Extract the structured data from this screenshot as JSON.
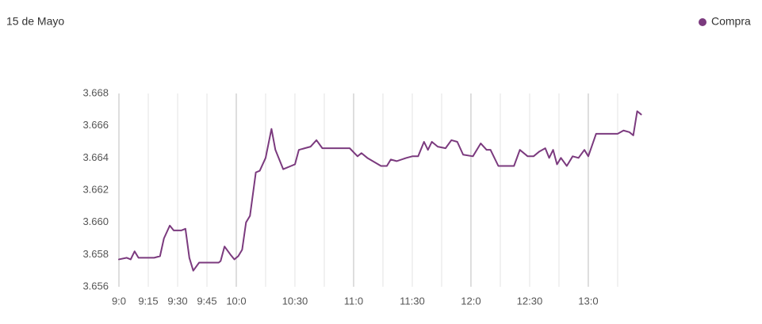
{
  "chart_data": {
    "type": "line",
    "title": "15 de Mayo",
    "x": [
      0,
      4,
      6,
      8,
      10,
      18,
      21,
      23,
      26,
      28,
      32,
      34,
      36,
      38,
      41,
      51,
      52,
      54,
      57,
      59,
      61,
      63,
      65,
      67,
      70,
      72,
      75,
      78,
      80,
      84,
      88,
      90,
      92,
      95,
      98,
      101,
      104,
      118,
      122,
      124,
      127,
      134,
      137,
      139,
      142,
      147,
      150,
      153,
      156,
      158,
      160,
      163,
      167,
      170,
      173,
      176,
      181,
      185,
      188,
      190,
      194,
      202,
      205,
      209,
      212,
      215,
      218,
      220,
      222,
      224,
      226,
      229,
      232,
      235,
      238,
      240,
      244,
      247,
      255,
      258,
      261,
      263,
      265,
      267
    ],
    "series": [
      {
        "name": "Compra",
        "color": "#7b3a7e",
        "values": [
          3.6577,
          3.6578,
          3.6577,
          3.6582,
          3.6578,
          3.6578,
          3.6579,
          3.659,
          3.6598,
          3.6595,
          3.6595,
          3.6596,
          3.6578,
          3.657,
          3.6575,
          3.6575,
          3.6576,
          3.6585,
          3.658,
          3.6577,
          3.6579,
          3.6583,
          3.66,
          3.6604,
          3.6631,
          3.6632,
          3.664,
          3.6658,
          3.6645,
          3.6633,
          3.6635,
          3.6636,
          3.6645,
          3.6646,
          3.6647,
          3.6651,
          3.6646,
          3.6646,
          3.6641,
          3.6643,
          3.664,
          3.6635,
          3.6635,
          3.6639,
          3.6638,
          3.664,
          3.6641,
          3.6641,
          3.665,
          3.6645,
          3.665,
          3.6647,
          3.6646,
          3.6651,
          3.665,
          3.6642,
          3.6641,
          3.6649,
          3.6645,
          3.6645,
          3.6635,
          3.6635,
          3.6645,
          3.6641,
          3.6641,
          3.6644,
          3.6646,
          3.664,
          3.6645,
          3.6636,
          3.664,
          3.6635,
          3.6641,
          3.664,
          3.6645,
          3.6641,
          3.6655,
          3.6655,
          3.6655,
          3.6657,
          3.6656,
          3.6654,
          3.6669,
          3.6667
        ]
      }
    ],
    "xlim": [
      0,
      268
    ],
    "xticks": [
      {
        "value": 0,
        "label": "9:0"
      },
      {
        "value": 15,
        "label": "9:15"
      },
      {
        "value": 30,
        "label": "9:30"
      },
      {
        "value": 45,
        "label": "9:45"
      },
      {
        "value": 60,
        "label": "10:0"
      },
      {
        "value": 75,
        "label": null
      },
      {
        "value": 90,
        "label": "10:30"
      },
      {
        "value": 105,
        "label": null
      },
      {
        "value": 120,
        "label": "11:0"
      },
      {
        "value": 135,
        "label": null
      },
      {
        "value": 150,
        "label": "11:30"
      },
      {
        "value": 165,
        "label": null
      },
      {
        "value": 180,
        "label": "12:0"
      },
      {
        "value": 195,
        "label": null
      },
      {
        "value": 210,
        "label": "12:30"
      },
      {
        "value": 225,
        "label": null
      },
      {
        "value": 240,
        "label": "13:0"
      },
      {
        "value": 255,
        "label": null
      }
    ],
    "ylim": [
      3.656,
      3.668
    ],
    "yticks": [
      3.656,
      3.658,
      {
        "value": 3.66,
        "label": "3.660"
      },
      3.662,
      3.664,
      3.666,
      3.668
    ],
    "legend": "top-right"
  }
}
